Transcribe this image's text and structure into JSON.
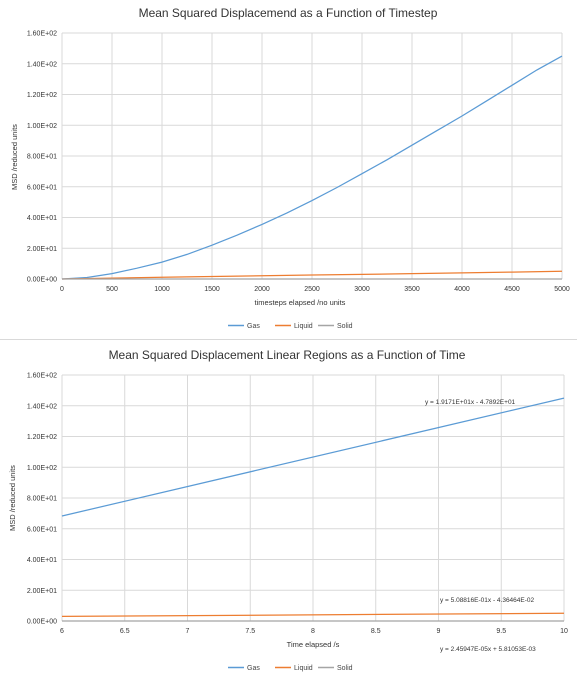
{
  "chart_data": [
    {
      "type": "line",
      "title": "Mean Squared Displacemend as a Function of Timestep",
      "xlabel": "timesteps elapsed  /no units",
      "ylabel": "MSD /reduced  units",
      "xlim": [
        0,
        5000
      ],
      "ylim": [
        0,
        160
      ],
      "x_ticks": [
        "0",
        "500",
        "1000",
        "1500",
        "2000",
        "2500",
        "3000",
        "3500",
        "4000",
        "4500",
        "5000"
      ],
      "y_ticks": [
        "0.00E+00",
        "2.00E+01",
        "4.00E+01",
        "6.00E+01",
        "8.00E+01",
        "1.00E+02",
        "1.20E+02",
        "1.40E+02",
        "1.60E+02"
      ],
      "grid": true,
      "legend": "bottom",
      "series": [
        {
          "name": "Gas",
          "color": "#5b9bd5",
          "x": [
            0,
            250,
            500,
            750,
            1000,
            1250,
            1500,
            1750,
            2000,
            2250,
            2500,
            2750,
            3000,
            3250,
            3500,
            3750,
            4000,
            4250,
            4500,
            4750,
            5000
          ],
          "y": [
            0,
            1,
            3.5,
            7,
            11,
            16,
            22,
            28.5,
            35.5,
            43,
            51,
            59.5,
            68.5,
            77.5,
            87,
            96.5,
            106,
            116,
            126,
            136,
            145
          ]
        },
        {
          "name": "Liquid",
          "color": "#ed7d31",
          "x": [
            0,
            500,
            1000,
            1500,
            2000,
            2500,
            3000,
            3500,
            4000,
            4500,
            5000
          ],
          "y": [
            0,
            0.6,
            1.1,
            1.6,
            2.1,
            2.6,
            3.0,
            3.5,
            4.0,
            4.5,
            5.0
          ]
        },
        {
          "name": "Solid",
          "color": "#a5a5a5",
          "x": [
            0,
            5000
          ],
          "y": [
            0,
            0.03
          ]
        }
      ]
    },
    {
      "type": "line",
      "title": "Mean Squared Displacement Linear Regions as a Function of Time",
      "xlabel": "Time elapsed /s",
      "ylabel": "MSD /reduced units",
      "xlim": [
        6,
        10
      ],
      "ylim": [
        0,
        160
      ],
      "x_ticks": [
        "6",
        "6.5",
        "7",
        "7.5",
        "8",
        "8.5",
        "9",
        "9.5",
        "10"
      ],
      "y_ticks": [
        "0.00E+00",
        "2.00E+01",
        "4.00E+01",
        "6.00E+01",
        "8.00E+01",
        "1.00E+02",
        "1.20E+02",
        "1.40E+02",
        "1.60E+02"
      ],
      "grid": true,
      "legend": "bottom",
      "series": [
        {
          "name": "Gas",
          "color": "#5b9bd5",
          "x": [
            6,
            10
          ],
          "y": [
            68.3,
            145
          ]
        },
        {
          "name": "Liquid",
          "color": "#ed7d31",
          "x": [
            6,
            10
          ],
          "y": [
            3.0,
            5.0
          ]
        },
        {
          "name": "Solid",
          "color": "#a5a5a5",
          "x": [
            6,
            10
          ],
          "y": [
            0.01,
            0.02
          ]
        }
      ],
      "annotations": [
        {
          "text": "y = 1.9171E+01x - 4.7892E+01"
        },
        {
          "text": "y = 5.08816E-01x - 4.36464E-02"
        },
        {
          "text": "y = 2.45947E-05x + 5.81053E-03"
        }
      ]
    }
  ]
}
